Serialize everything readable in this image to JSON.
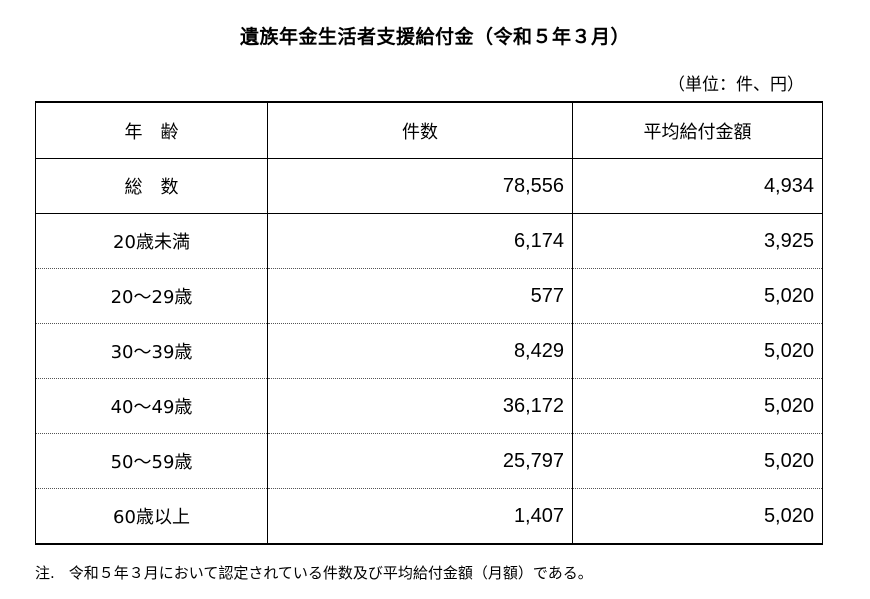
{
  "title": "遺族年金生活者支援給付金（令和５年３月）",
  "unit": "（単位：件、円）",
  "headers": {
    "age": "年　齢",
    "count": "件数",
    "avg": "平均給付金額"
  },
  "rows": [
    {
      "label": "総　数",
      "count": "78,556",
      "avg": "4,934"
    },
    {
      "label": "20歳未満",
      "count": "6,174",
      "avg": "3,925"
    },
    {
      "label": "20～29歳",
      "count": "577",
      "avg": "5,020"
    },
    {
      "label": "30～39歳",
      "count": "8,429",
      "avg": "5,020"
    },
    {
      "label": "40～49歳",
      "count": "36,172",
      "avg": "5,020"
    },
    {
      "label": "50～59歳",
      "count": "25,797",
      "avg": "5,020"
    },
    {
      "label": "60歳以上",
      "count": "1,407",
      "avg": "5,020"
    }
  ],
  "note": {
    "prefix": "注.",
    "text": "令和５年３月において認定されている件数及び平均給付金額（月額）である。"
  }
}
